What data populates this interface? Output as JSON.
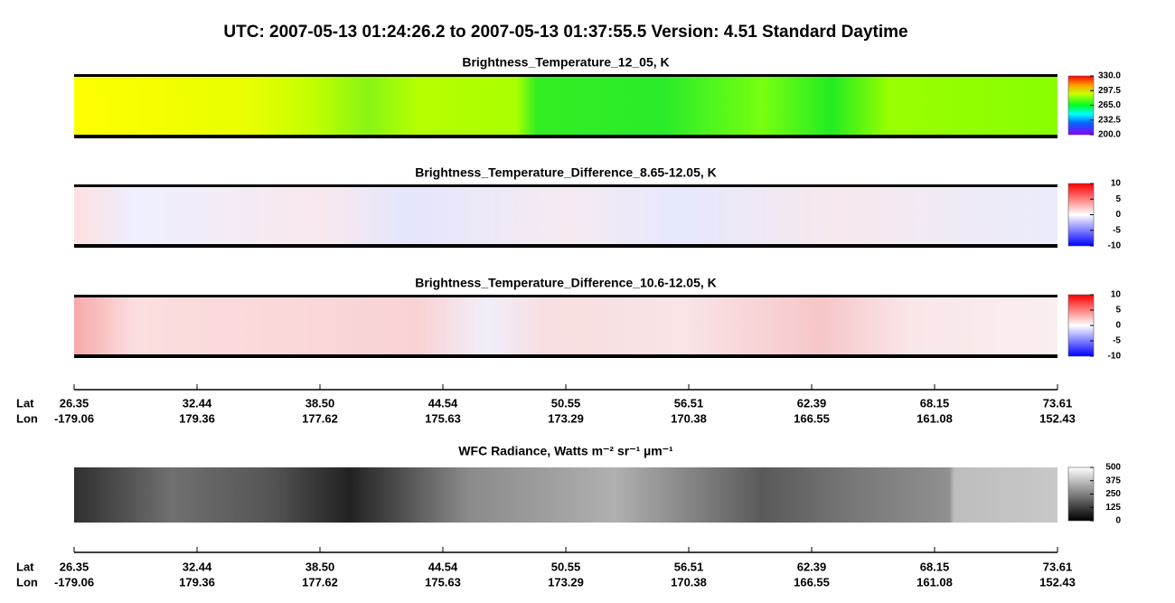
{
  "title": "UTC:  2007-05-13   01:24:26.2  to  2007-05-13   01:37:55.5    Version: 4.51  Standard Daytime",
  "panels": [
    {
      "title": "Brightness_Temperature_12_05, K",
      "clim": [
        200,
        330
      ],
      "colorbar_ticks": [
        {
          "value": 330,
          "label": "330.0"
        },
        297.5,
        {
          "value": 265,
          "label": "265.0"
        },
        232.5,
        {
          "value": 200,
          "label": "200.0"
        }
      ]
    },
    {
      "title": "Brightness_Temperature_Difference_8.65-12.05, K",
      "clim": [
        -10,
        10
      ],
      "colorbar_ticks": [
        10,
        5,
        0,
        -5,
        -10
      ]
    },
    {
      "title": "Brightness_Temperature_Difference_10.6-12.05, K",
      "clim": [
        -10,
        10
      ],
      "colorbar_ticks": [
        10,
        5,
        0,
        -5,
        -10
      ]
    },
    {
      "title": "WFC Radiance, Watts m⁻² sr⁻¹ µm⁻¹",
      "clim": [
        0,
        500
      ],
      "colorbar_ticks": [
        500,
        375,
        250,
        125,
        0
      ]
    }
  ],
  "along_track": {
    "lat_label": "Lat",
    "lon_label": "Lon",
    "lat": [
      26.35,
      32.44,
      {
        "value": 38.5,
        "label": "38.50"
      },
      44.54,
      50.55,
      56.51,
      62.39,
      68.15,
      73.61
    ],
    "lon": [
      -179.06,
      179.36,
      177.62,
      175.63,
      173.29,
      170.38,
      166.55,
      161.08,
      152.43
    ]
  }
}
